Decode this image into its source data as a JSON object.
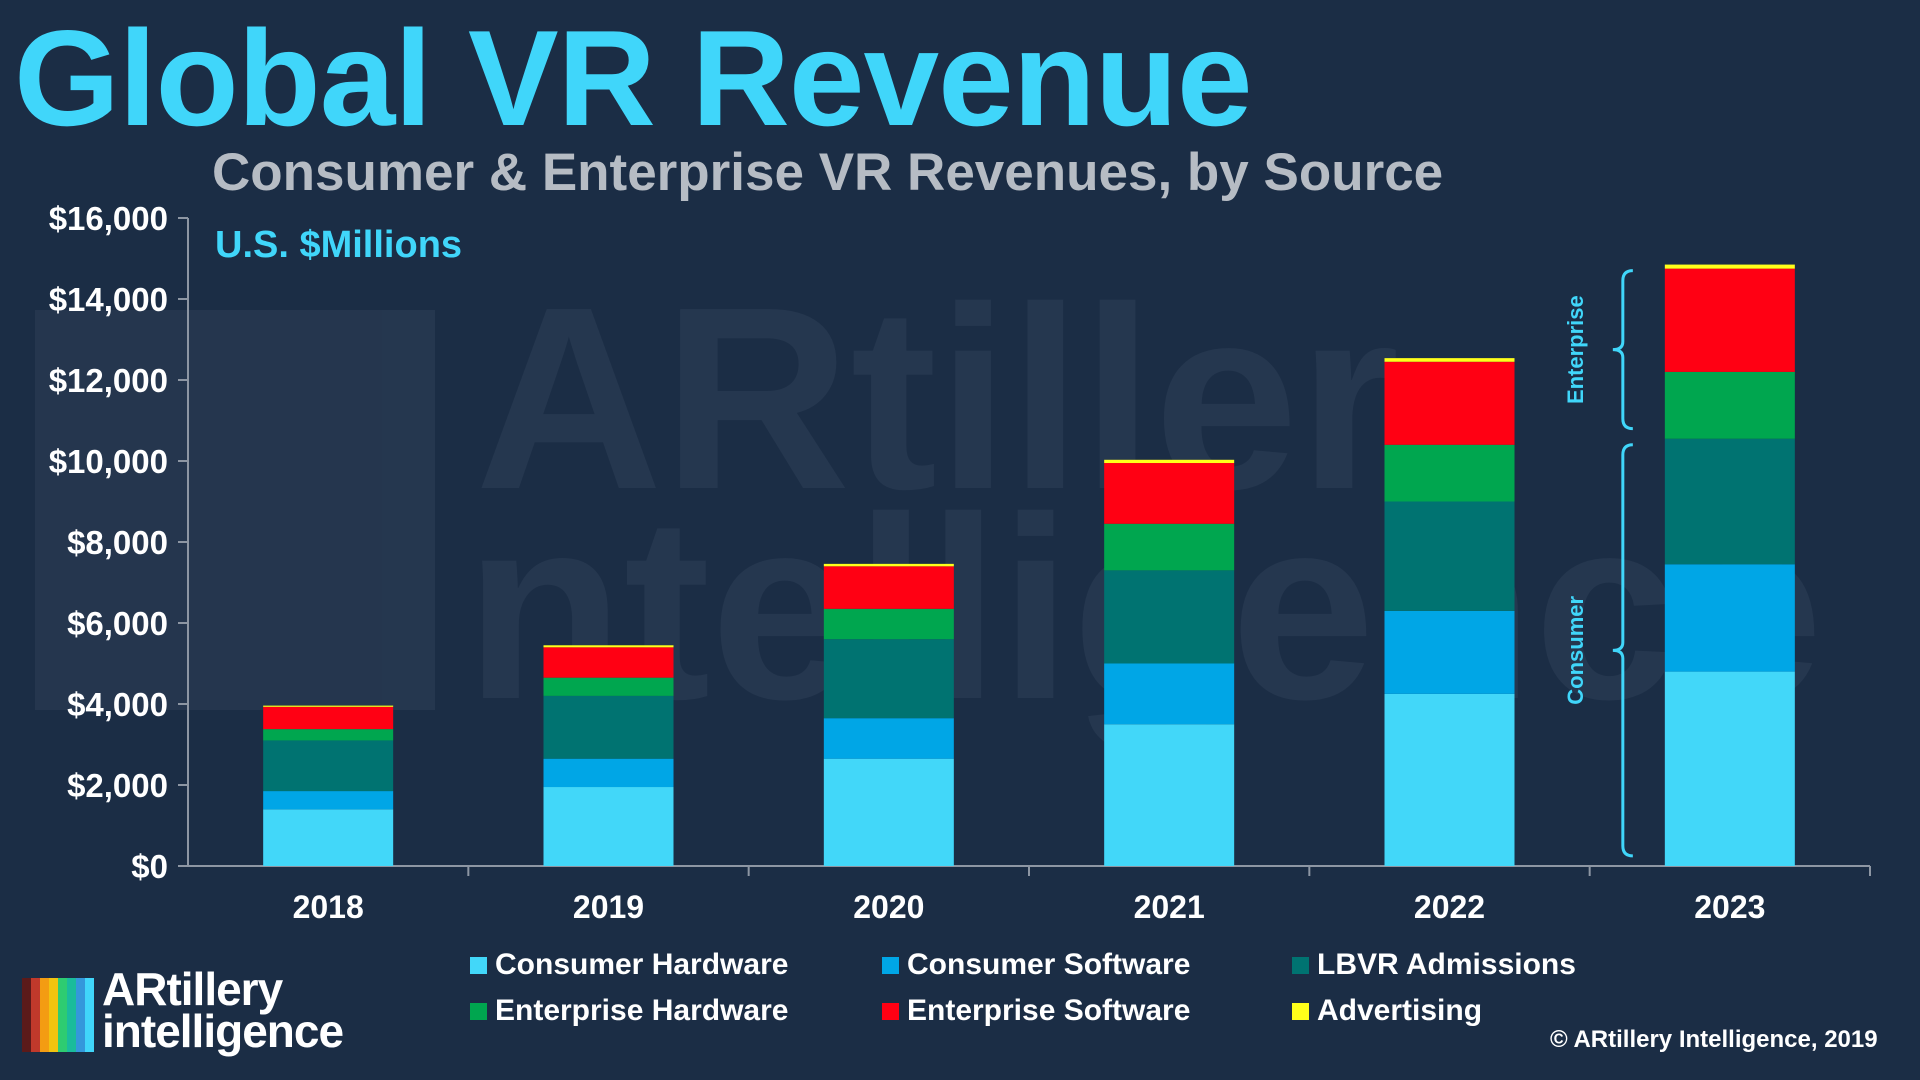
{
  "title": "Global VR Revenue",
  "subtitle": "Consumer & Enterprise VR Revenues, by Source",
  "units_label": "U.S. $Millions",
  "copyright": "© ARtillery Intelligence, 2019",
  "logo": {
    "line1": "ARtillery",
    "line2": "intelligence"
  },
  "watermark": {
    "line1": "ARtiller",
    "line2": "ntelligence"
  },
  "colors": {
    "background": "#1b2d45",
    "title": "#40d6fa",
    "subtitle": "#b6bcc4",
    "axis": "#8d96a3",
    "logo_stripes": [
      "#5b1a1a",
      "#c0392b",
      "#f39c12",
      "#f1c40f",
      "#2ecc71",
      "#1abc9c",
      "#3498db",
      "#40d6fa"
    ]
  },
  "chart_data": {
    "type": "bar",
    "stacked": true,
    "categories": [
      "2018",
      "2019",
      "2020",
      "2021",
      "2022",
      "2023"
    ],
    "series": [
      {
        "name": "Consumer Hardware",
        "color": "#42d7f9",
        "values": [
          1400,
          1950,
          2650,
          3500,
          4250,
          4800
        ]
      },
      {
        "name": "Consumer Software",
        "color": "#00a6e6",
        "values": [
          450,
          700,
          1000,
          1500,
          2050,
          2650
        ]
      },
      {
        "name": "LBVR Admissions",
        "color": "#007371",
        "values": [
          1250,
          1550,
          1950,
          2300,
          2700,
          3100
        ]
      },
      {
        "name": "Enterprise Hardware",
        "color": "#00a64f",
        "values": [
          280,
          450,
          750,
          1150,
          1400,
          1650
        ]
      },
      {
        "name": "Enterprise Software",
        "color": "#ff0013",
        "values": [
          550,
          750,
          1050,
          1500,
          2050,
          2550
        ]
      },
      {
        "name": "Advertising",
        "color": "#ffff1a",
        "values": [
          30,
          50,
          60,
          80,
          90,
          100
        ]
      }
    ],
    "y_ticks": [
      "$0",
      "$2,000",
      "$4,000",
      "$6,000",
      "$8,000",
      "$10,000",
      "$12,000",
      "$14,000",
      "$16,000"
    ],
    "ylim": [
      0,
      16000
    ],
    "legend_position": "bottom",
    "annotations": [
      {
        "text": "Enterprise",
        "from": 10800,
        "to": 14700
      },
      {
        "text": "Consumer",
        "from": 250,
        "to": 10400
      }
    ]
  }
}
